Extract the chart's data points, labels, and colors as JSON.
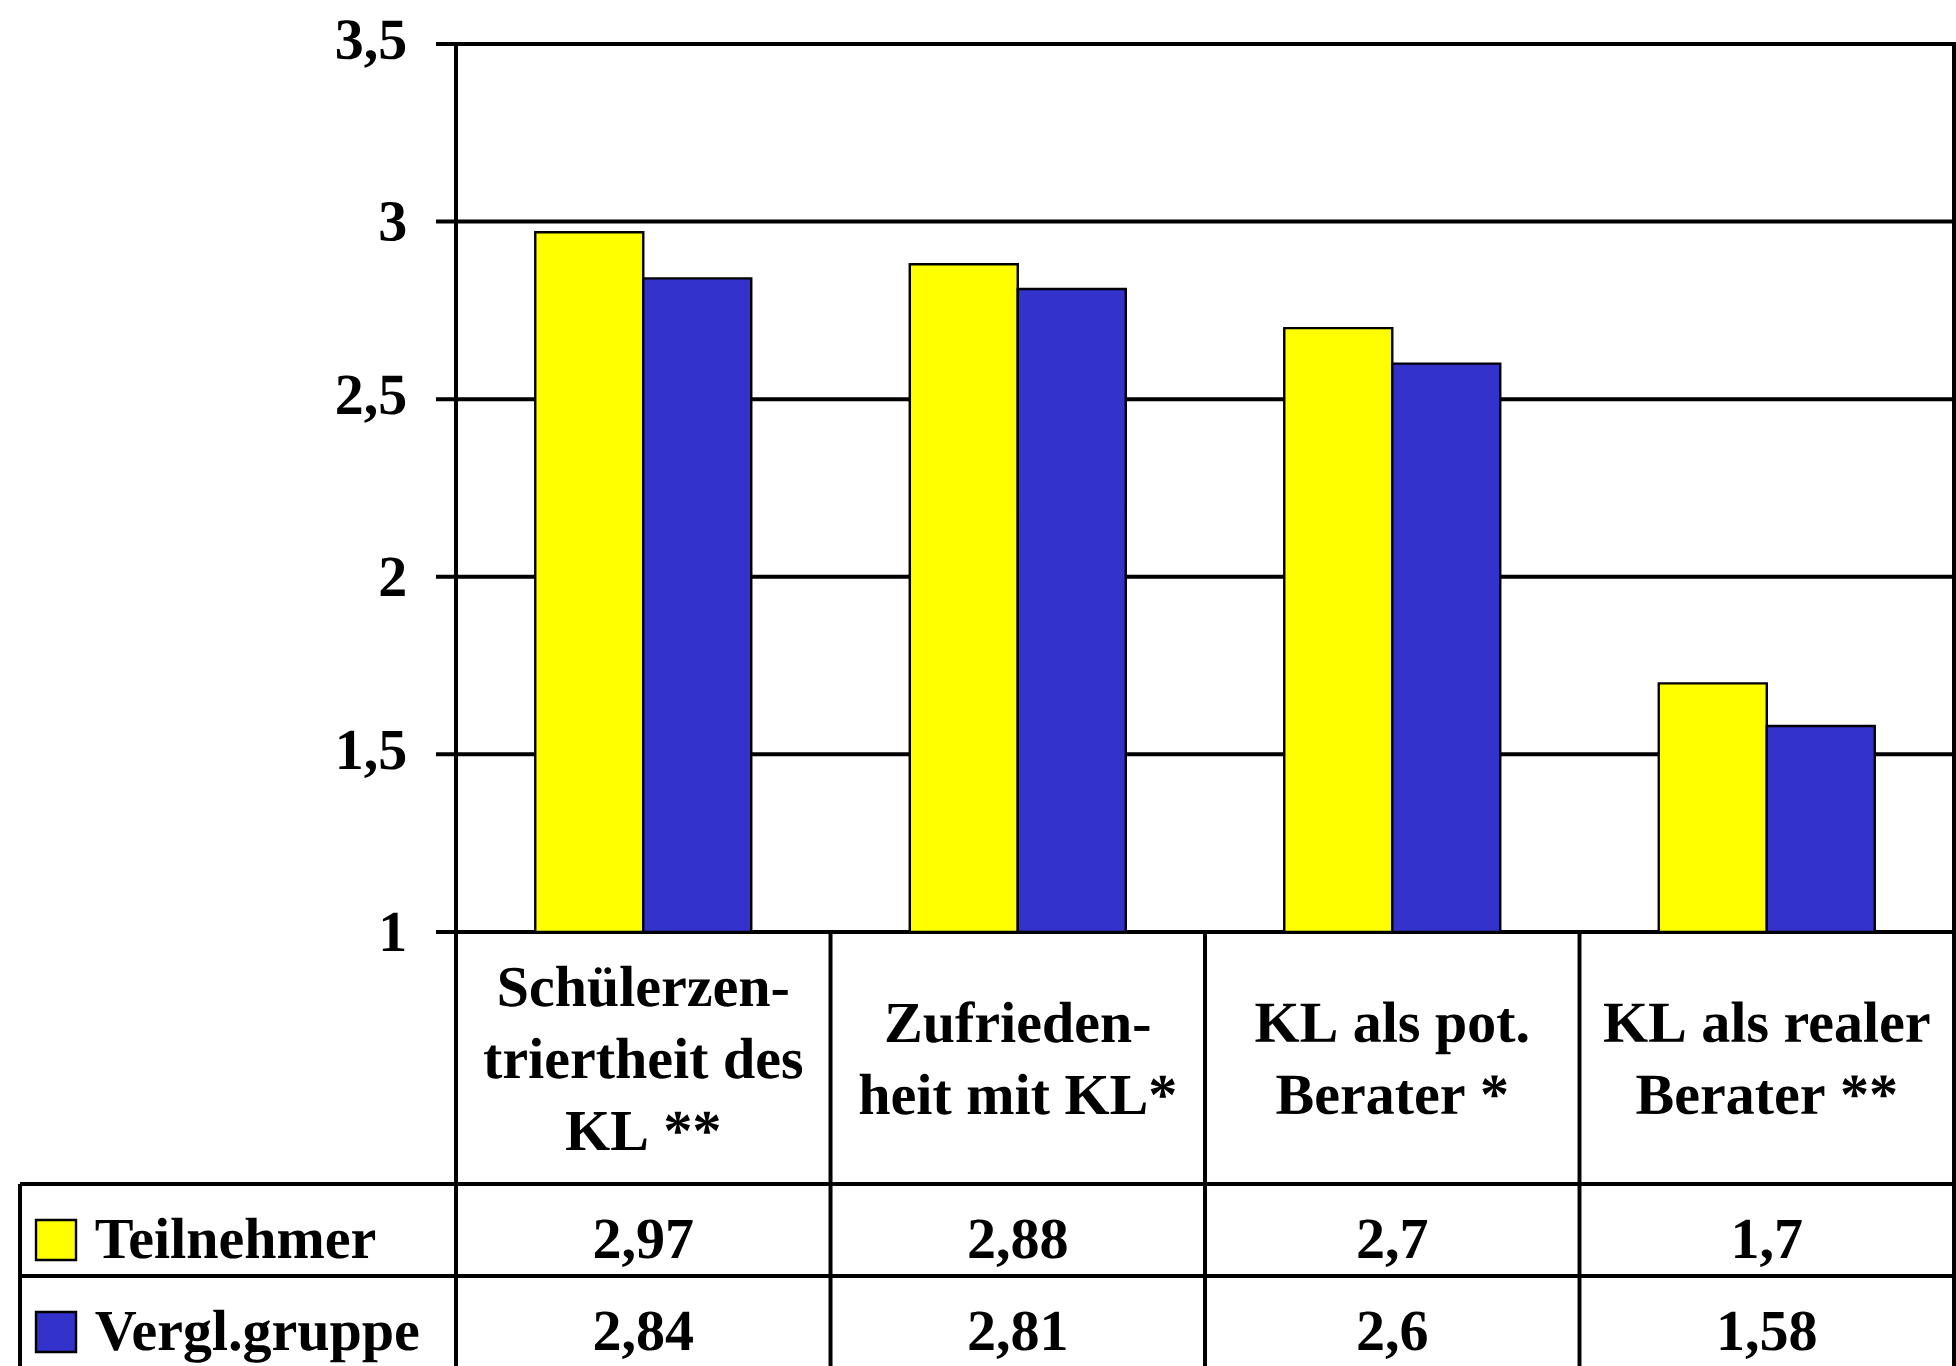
{
  "chart_data": {
    "type": "bar",
    "categories": [
      "Schülerzen-triertheit des KL **",
      "Zufrieden-heit mit KL*",
      "KL als pot. Berater *",
      "KL als realer Berater **"
    ],
    "series": [
      {
        "name": "Teilnehmer",
        "color": "#ffff00",
        "values": [
          2.97,
          2.88,
          2.7,
          1.7
        ],
        "value_labels": [
          "2,97",
          "2,88",
          "2,7",
          "1,7"
        ]
      },
      {
        "name": "Vergl.gruppe",
        "color": "#3333cc",
        "values": [
          2.84,
          2.81,
          2.6,
          1.58
        ],
        "value_labels": [
          "2,84",
          "2,81",
          "2,6",
          "1,58"
        ]
      }
    ],
    "ylim": [
      1,
      3.5
    ],
    "yticks": [
      1,
      {
        "value": 1.5,
        "label": "1,5"
      },
      2,
      {
        "value": 2.5,
        "label": "2,5"
      },
      3,
      {
        "value": 3.5,
        "label": "3,5"
      }
    ],
    "grid": "y",
    "legend": "bottom left"
  }
}
